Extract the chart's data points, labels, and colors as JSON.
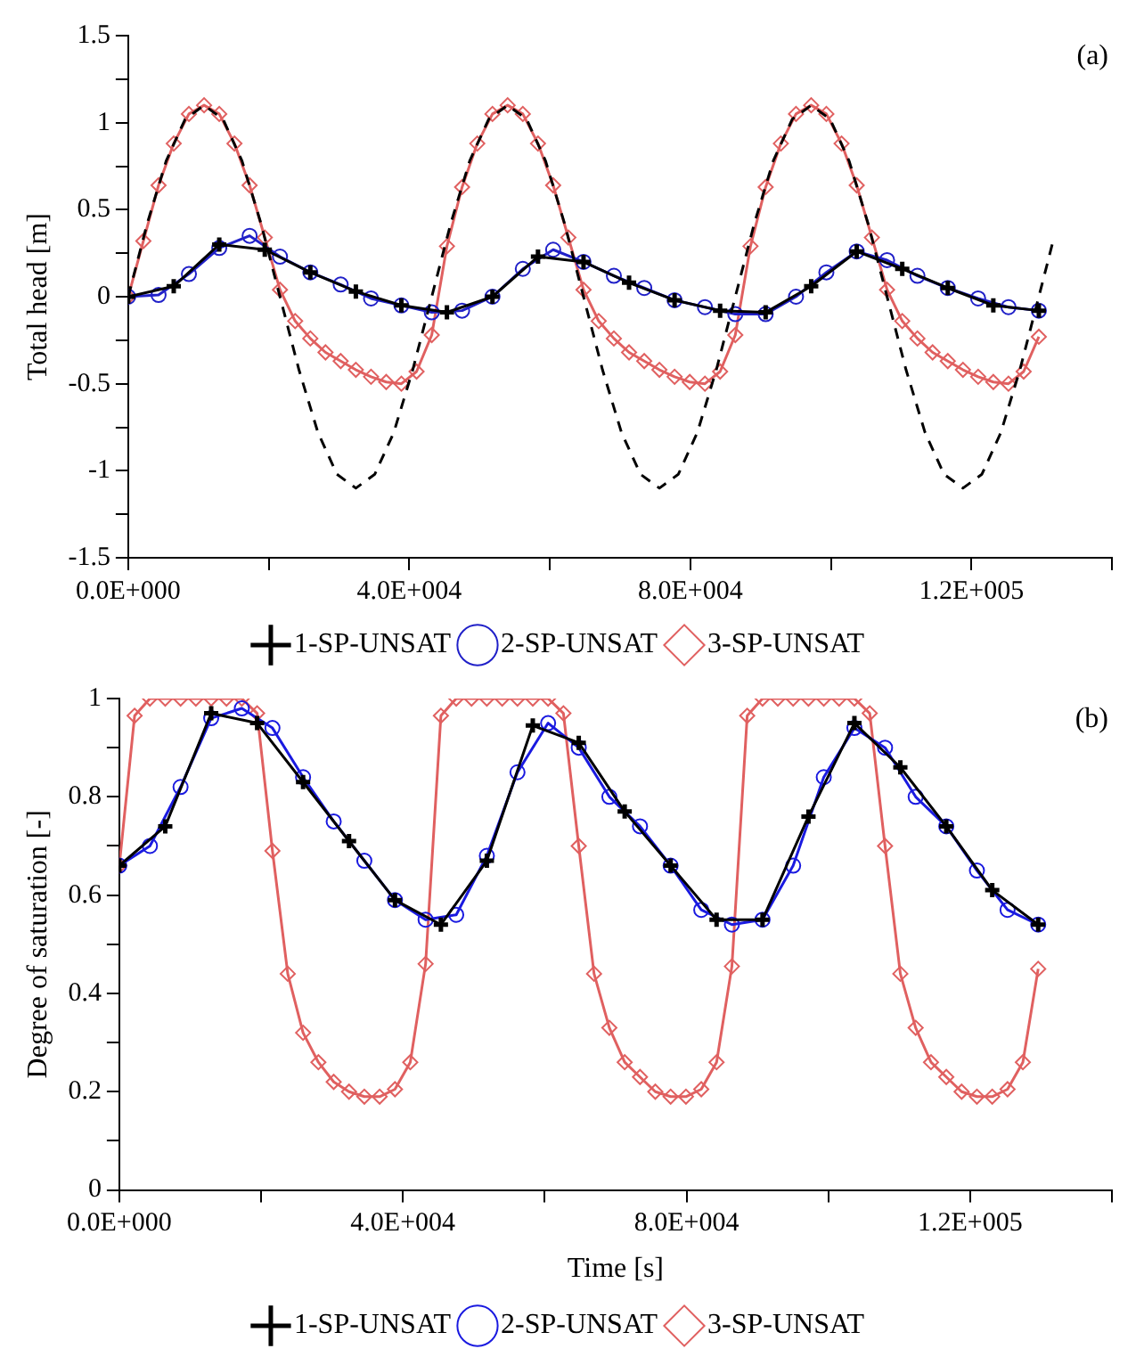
{
  "chart_data": [
    {
      "type": "line",
      "ylabel": "Total head [m]",
      "annotations": [
        "(a)"
      ],
      "legend": "bottom",
      "grid": false,
      "xlim": [
        0,
        140000
      ],
      "ylim": [
        -1.5,
        1.5
      ],
      "xticks": [
        {
          "value": 0,
          "label": "0.0E+000"
        },
        {
          "value": 20000,
          "label": null
        },
        {
          "value": 40000,
          "label": "4.0E+004"
        },
        {
          "value": 60000,
          "label": null
        },
        {
          "value": 80000,
          "label": "8.0E+004"
        },
        {
          "value": 100000,
          "label": null
        },
        {
          "value": 120000,
          "label": "1.2E+005"
        },
        {
          "value": 140000,
          "label": null
        }
      ],
      "yticks": [
        -1.5,
        {
          "value": -1.25,
          "label": null
        },
        -1,
        {
          "value": -0.75,
          "label": null
        },
        -0.5,
        {
          "value": -0.25,
          "label": null
        },
        0,
        {
          "value": 0.25,
          "label": null
        },
        0.5,
        {
          "value": 0.75,
          "label": null
        },
        1,
        {
          "value": 1.25,
          "label": null
        },
        1.5
      ],
      "series": [
        {
          "color": "#000000",
          "marker": "none",
          "line_style": "dashed",
          "x": [
            0,
            2700,
            5400,
            8100,
            10800,
            13500,
            16200,
            18900,
            21600,
            24300,
            27000,
            29700,
            32400,
            35100,
            37800,
            40500,
            43200,
            45900,
            48600,
            51300,
            54000,
            56700,
            59400,
            62100,
            64800,
            67500,
            70200,
            72900,
            75600,
            78300,
            81000,
            83700,
            86400,
            89100,
            91800,
            94500,
            97200,
            99900,
            102600,
            105300,
            108000,
            110700,
            113400,
            116100,
            118800,
            121500,
            124200,
            126900,
            129600,
            131500
          ],
          "values": [
            0,
            0.42,
            0.78,
            1.02,
            1.1,
            1.02,
            0.78,
            0.42,
            0,
            -0.42,
            -0.78,
            -1.02,
            -1.1,
            -1.02,
            -0.78,
            -0.42,
            0,
            0.42,
            0.78,
            1.02,
            1.1,
            1.02,
            0.78,
            0.42,
            0,
            -0.42,
            -0.78,
            -1.02,
            -1.1,
            -1.02,
            -0.78,
            -0.42,
            0,
            0.42,
            0.78,
            1.02,
            1.1,
            1.02,
            0.78,
            0.42,
            0,
            -0.42,
            -0.78,
            -1.02,
            -1.1,
            -1.02,
            -0.78,
            -0.42,
            0,
            0.3
          ]
        },
        {
          "name": "1-SP-UNSAT",
          "color": "#000000",
          "marker": "cross",
          "line_style": "solid",
          "x": [
            0,
            6480,
            12960,
            19440,
            25920,
            32400,
            38880,
            45360,
            51840,
            58320,
            64800,
            71280,
            77760,
            84240,
            90720,
            97200,
            103680,
            110160,
            116640,
            123120,
            129600
          ],
          "values": [
            0,
            0.06,
            0.3,
            0.27,
            0.14,
            0.03,
            -0.05,
            -0.09,
            0,
            0.23,
            0.2,
            0.08,
            -0.02,
            -0.08,
            -0.09,
            0.06,
            0.26,
            0.16,
            0.05,
            -0.05,
            -0.08
          ]
        },
        {
          "name": "2-SP-UNSAT",
          "color": "#2020c8",
          "marker": "circle",
          "line_style": "solid",
          "x": [
            0,
            4320,
            8640,
            12960,
            17280,
            21600,
            25920,
            30240,
            34560,
            38880,
            43200,
            47520,
            51840,
            56160,
            60480,
            64800,
            69120,
            73440,
            77760,
            82080,
            86400,
            90720,
            95040,
            99360,
            103680,
            108000,
            112320,
            116640,
            120960,
            125280,
            129600
          ],
          "values": [
            0,
            0.01,
            0.13,
            0.28,
            0.35,
            0.23,
            0.14,
            0.07,
            -0.01,
            -0.05,
            -0.09,
            -0.08,
            0,
            0.16,
            0.27,
            0.2,
            0.12,
            0.05,
            -0.02,
            -0.06,
            -0.1,
            -0.1,
            0,
            0.14,
            0.26,
            0.21,
            0.12,
            0.05,
            -0.01,
            -0.06,
            -0.08
          ]
        },
        {
          "name": "3-SP-UNSAT",
          "color": "#e06060",
          "marker": "diamond",
          "line_style": "solid",
          "x": [
            0,
            2160,
            4320,
            6480,
            8640,
            10800,
            12960,
            15120,
            17280,
            19440,
            21600,
            23760,
            25920,
            28080,
            30240,
            32400,
            34560,
            36720,
            38880,
            41040,
            43200,
            45360,
            47520,
            49680,
            51840,
            54000,
            56160,
            58320,
            60480,
            62640,
            64800,
            66960,
            69120,
            71280,
            73440,
            75600,
            77760,
            79920,
            82080,
            84240,
            86400,
            88560,
            90720,
            92880,
            95040,
            97200,
            99360,
            101520,
            103680,
            105840,
            108000,
            110160,
            112320,
            114480,
            116640,
            118800,
            120960,
            123120,
            125280,
            127440,
            129600
          ],
          "values": [
            0,
            0.32,
            0.64,
            0.88,
            1.05,
            1.1,
            1.05,
            0.88,
            0.64,
            0.34,
            0.04,
            -0.14,
            -0.24,
            -0.32,
            -0.37,
            -0.42,
            -0.46,
            -0.49,
            -0.5,
            -0.43,
            -0.22,
            0.29,
            0.63,
            0.88,
            1.05,
            1.1,
            1.05,
            0.88,
            0.64,
            0.34,
            0.04,
            -0.14,
            -0.24,
            -0.32,
            -0.37,
            -0.42,
            -0.46,
            -0.49,
            -0.5,
            -0.43,
            -0.22,
            0.29,
            0.63,
            0.88,
            1.05,
            1.1,
            1.05,
            0.88,
            0.64,
            0.34,
            0.04,
            -0.14,
            -0.24,
            -0.32,
            -0.37,
            -0.42,
            -0.46,
            -0.49,
            -0.5,
            -0.43,
            -0.23
          ]
        }
      ]
    },
    {
      "type": "line",
      "xlabel": "Time [s]",
      "ylabel": "Degree of saturation [-]",
      "annotations": [
        "(b)"
      ],
      "legend": "bottom",
      "grid": false,
      "xlim": [
        0,
        140000
      ],
      "ylim": [
        0,
        1
      ],
      "xticks": [
        {
          "value": 0,
          "label": "0.0E+000"
        },
        {
          "value": 20000,
          "label": null
        },
        {
          "value": 40000,
          "label": "4.0E+004"
        },
        {
          "value": 60000,
          "label": null
        },
        {
          "value": 80000,
          "label": "8.0E+004"
        },
        {
          "value": 100000,
          "label": null
        },
        {
          "value": 120000,
          "label": "1.2E+005"
        },
        {
          "value": 140000,
          "label": null
        }
      ],
      "yticks": [
        0,
        {
          "value": 0.1,
          "label": null
        },
        0.2,
        {
          "value": 0.3,
          "label": null
        },
        0.4,
        {
          "value": 0.5,
          "label": null
        },
        0.6,
        {
          "value": 0.7,
          "label": null
        },
        0.8,
        {
          "value": 0.9,
          "label": null
        },
        1
      ],
      "series": [
        {
          "name": "1-SP-UNSAT",
          "color": "#000000",
          "marker": "cross",
          "line_style": "solid",
          "x": [
            0,
            6480,
            12960,
            19440,
            25920,
            32400,
            38880,
            45360,
            51840,
            58320,
            64800,
            71280,
            77760,
            84240,
            90720,
            97200,
            103680,
            110160,
            116640,
            123120,
            129600
          ],
          "values": [
            0.66,
            0.74,
            0.97,
            0.95,
            0.83,
            0.71,
            0.59,
            0.54,
            0.67,
            0.945,
            0.91,
            0.77,
            0.66,
            0.55,
            0.55,
            0.76,
            0.95,
            0.86,
            0.74,
            0.61,
            0.54
          ]
        },
        {
          "name": "2-SP-UNSAT",
          "color": "#1a1ae0",
          "marker": "circle",
          "line_style": "solid",
          "x": [
            0,
            4320,
            8640,
            12960,
            17280,
            21600,
            25920,
            30240,
            34560,
            38880,
            43200,
            47520,
            51840,
            56160,
            60480,
            64800,
            69120,
            73440,
            77760,
            82080,
            86400,
            90720,
            95040,
            99360,
            103680,
            108000,
            112320,
            116640,
            120960,
            125280,
            129600
          ],
          "values": [
            0.66,
            0.7,
            0.82,
            0.96,
            0.98,
            0.94,
            0.84,
            0.75,
            0.67,
            0.59,
            0.55,
            0.56,
            0.68,
            0.85,
            0.95,
            0.9,
            0.8,
            0.74,
            0.66,
            0.57,
            0.54,
            0.55,
            0.66,
            0.84,
            0.94,
            0.9,
            0.8,
            0.74,
            0.65,
            0.57,
            0.54
          ]
        },
        {
          "name": "3-SP-UNSAT",
          "color": "#e06060",
          "marker": "diamond",
          "line_style": "solid",
          "x": [
            0,
            2160,
            4320,
            6480,
            8640,
            10800,
            12960,
            15120,
            17280,
            19440,
            21600,
            23760,
            25920,
            28080,
            30240,
            32400,
            34560,
            36720,
            38880,
            41040,
            43200,
            45360,
            47520,
            49680,
            51840,
            54000,
            56160,
            58320,
            60480,
            62640,
            64800,
            66960,
            69120,
            71280,
            73440,
            75600,
            77760,
            79920,
            82080,
            84240,
            86400,
            88560,
            90720,
            92880,
            95040,
            97200,
            99360,
            101520,
            103680,
            105840,
            108000,
            110160,
            112320,
            114480,
            116640,
            118800,
            120960,
            123120,
            125280,
            127440,
            129600
          ],
          "values": [
            0.66,
            0.965,
            1,
            1,
            1,
            1,
            1,
            1,
            1,
            0.97,
            0.69,
            0.44,
            0.32,
            0.26,
            0.22,
            0.2,
            0.19,
            0.19,
            0.205,
            0.26,
            0.46,
            0.965,
            1,
            1,
            1,
            1,
            1,
            1,
            1,
            0.97,
            0.7,
            0.44,
            0.33,
            0.26,
            0.23,
            0.2,
            0.19,
            0.19,
            0.205,
            0.26,
            0.455,
            0.965,
            1,
            1,
            1,
            1,
            1,
            1,
            1,
            0.97,
            0.7,
            0.44,
            0.33,
            0.26,
            0.23,
            0.2,
            0.19,
            0.19,
            0.205,
            0.26,
            0.45
          ]
        }
      ]
    }
  ]
}
